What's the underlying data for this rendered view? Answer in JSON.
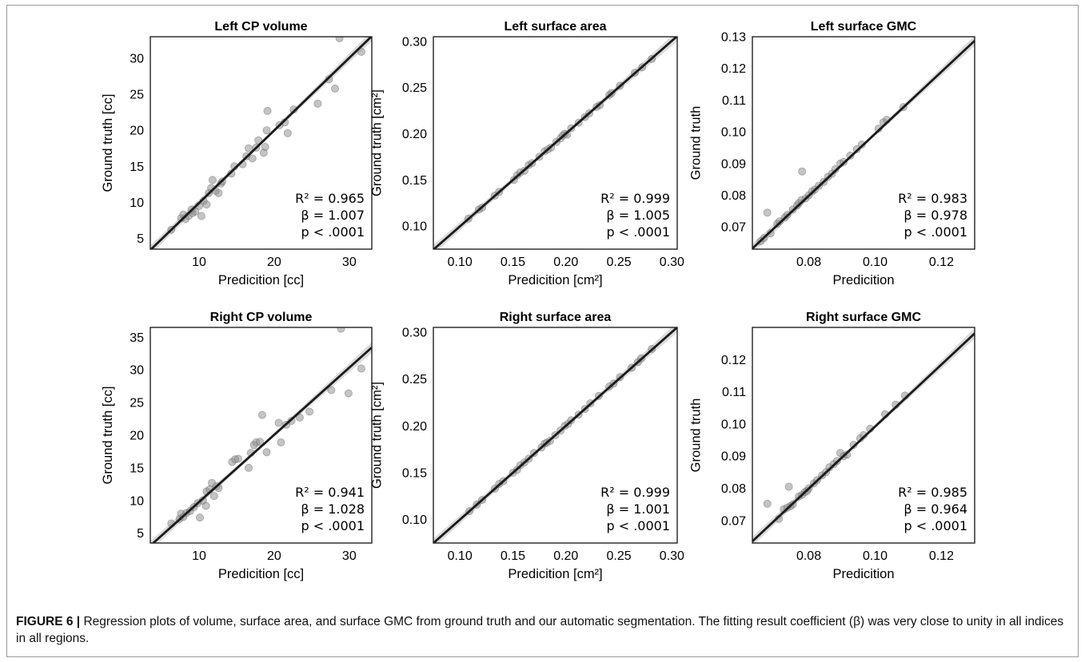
{
  "caption": {
    "label": "FIGURE 6 |",
    "text": " Regression plots of volume, surface area, and surface GMC from ground truth and our automatic segmentation. The fitting result coefficient (β) was very close to unity in all indices in all regions."
  },
  "colors": {
    "points": "#8a8a8a",
    "line": "#1a1a1a",
    "band": "#cfcfcf"
  },
  "chart_data": [
    {
      "type": "scatter",
      "title": "Left CP volume",
      "xlabel": "Predicition [cc]",
      "ylabel": "Ground truth [cc]",
      "xlim": [
        3.5,
        33
      ],
      "ylim": [
        3.5,
        33
      ],
      "xticks": [
        10,
        20,
        30
      ],
      "yticks": [
        5,
        10,
        15,
        20,
        25,
        30
      ],
      "stats": {
        "r2": "R² = 0.965",
        "beta": "β = 1.007",
        "p": "p < .0001"
      },
      "fit": {
        "slope": 1.007,
        "intercept": -0.15
      },
      "points": [
        [
          6.3,
          6.2
        ],
        [
          7.6,
          7.8
        ],
        [
          7.9,
          8.3
        ],
        [
          8.2,
          7.7
        ],
        [
          8.6,
          8.1
        ],
        [
          9.1,
          8.5
        ],
        [
          9.0,
          9.0
        ],
        [
          9.5,
          8.7
        ],
        [
          10.0,
          9.5
        ],
        [
          10.3,
          8.1
        ],
        [
          10.6,
          10.2
        ],
        [
          11.0,
          9.7
        ],
        [
          11.3,
          11.3
        ],
        [
          11.6,
          12.0
        ],
        [
          11.8,
          13.1
        ],
        [
          12.2,
          11.6
        ],
        [
          12.6,
          11.3
        ],
        [
          12.9,
          12.6
        ],
        [
          13.1,
          12.9
        ],
        [
          14.3,
          14.0
        ],
        [
          14.7,
          15.0
        ],
        [
          15.8,
          15.3
        ],
        [
          16.3,
          16.4
        ],
        [
          16.6,
          17.5
        ],
        [
          17.1,
          16.1
        ],
        [
          17.6,
          17.6
        ],
        [
          17.9,
          18.6
        ],
        [
          18.6,
          16.9
        ],
        [
          18.8,
          17.7
        ],
        [
          19.0,
          20.0
        ],
        [
          19.1,
          22.7
        ],
        [
          20.7,
          20.7
        ],
        [
          21.4,
          21.1
        ],
        [
          21.8,
          19.6
        ],
        [
          22.6,
          22.9
        ],
        [
          25.8,
          23.7
        ],
        [
          27.3,
          27.1
        ],
        [
          28.1,
          25.8
        ],
        [
          28.7,
          32.8
        ],
        [
          31.6,
          30.9
        ]
      ]
    },
    {
      "type": "scatter",
      "title": "Left surface area",
      "xlabel": "Predicition [cm²]",
      "ylabel": "Ground truth [cm²]",
      "xlim": [
        0.075,
        0.305
      ],
      "ylim": [
        0.075,
        0.305
      ],
      "xticks": [
        0.1,
        0.15,
        0.2,
        0.25,
        0.3
      ],
      "yticks": [
        0.1,
        0.15,
        0.2,
        0.25,
        0.3
      ],
      "stats": {
        "r2": "R² = 0.999",
        "beta": "β = 1.005",
        "p": "p < .0001"
      },
      "fit": {
        "slope": 1.005,
        "intercept": -0.0009
      },
      "points": [
        [
          0.108,
          0.108
        ],
        [
          0.118,
          0.118
        ],
        [
          0.121,
          0.12
        ],
        [
          0.133,
          0.133
        ],
        [
          0.137,
          0.137
        ],
        [
          0.151,
          0.15
        ],
        [
          0.154,
          0.155
        ],
        [
          0.157,
          0.158
        ],
        [
          0.161,
          0.16
        ],
        [
          0.165,
          0.166
        ],
        [
          0.168,
          0.168
        ],
        [
          0.175,
          0.175
        ],
        [
          0.18,
          0.181
        ],
        [
          0.183,
          0.183
        ],
        [
          0.186,
          0.185
        ],
        [
          0.191,
          0.191
        ],
        [
          0.195,
          0.195
        ],
        [
          0.197,
          0.198
        ],
        [
          0.199,
          0.2
        ],
        [
          0.201,
          0.199
        ],
        [
          0.205,
          0.206
        ],
        [
          0.212,
          0.212
        ],
        [
          0.218,
          0.218
        ],
        [
          0.222,
          0.222
        ],
        [
          0.229,
          0.229
        ],
        [
          0.232,
          0.231
        ],
        [
          0.241,
          0.242
        ],
        [
          0.243,
          0.244
        ],
        [
          0.251,
          0.252
        ],
        [
          0.265,
          0.266
        ],
        [
          0.272,
          0.272
        ],
        [
          0.281,
          0.281
        ]
      ]
    },
    {
      "type": "scatter",
      "title": "Left surface GMC",
      "xlabel": "Predicition",
      "ylabel": "Ground truth",
      "xlim": [
        0.063,
        0.13
      ],
      "ylim": [
        0.063,
        0.13
      ],
      "xticks": [
        0.08,
        0.1,
        0.12
      ],
      "yticks": [
        0.07,
        0.08,
        0.09,
        0.1,
        0.11,
        0.12,
        0.13
      ],
      "stats": {
        "r2": "R² = 0.983",
        "beta": "β = 0.978",
        "p": "p < .0001"
      },
      "fit": {
        "slope": 0.978,
        "intercept": 0.0016
      },
      "points": [
        [
          0.0655,
          0.0655
        ],
        [
          0.0665,
          0.0665
        ],
        [
          0.0675,
          0.0745
        ],
        [
          0.0685,
          0.068
        ],
        [
          0.0705,
          0.071
        ],
        [
          0.0712,
          0.0718
        ],
        [
          0.0728,
          0.073
        ],
        [
          0.0735,
          0.0738
        ],
        [
          0.0752,
          0.0755
        ],
        [
          0.0765,
          0.0768
        ],
        [
          0.077,
          0.0775
        ],
        [
          0.0778,
          0.0785
        ],
        [
          0.078,
          0.0875
        ],
        [
          0.079,
          0.079
        ],
        [
          0.08,
          0.08
        ],
        [
          0.081,
          0.0812
        ],
        [
          0.0818,
          0.0818
        ],
        [
          0.083,
          0.083
        ],
        [
          0.0845,
          0.0842
        ],
        [
          0.0858,
          0.0858
        ],
        [
          0.087,
          0.0868
        ],
        [
          0.088,
          0.0882
        ],
        [
          0.0895,
          0.09
        ],
        [
          0.0905,
          0.0905
        ],
        [
          0.0925,
          0.0925
        ],
        [
          0.0945,
          0.0945
        ],
        [
          0.096,
          0.096
        ],
        [
          0.101,
          0.101
        ],
        [
          0.1025,
          0.103
        ],
        [
          0.1035,
          0.1038
        ],
        [
          0.1085,
          0.1078
        ]
      ]
    },
    {
      "type": "scatter",
      "title": "Right CP volume",
      "xlabel": "Predicition [cc]",
      "ylabel": "Ground truth [cc]",
      "xlim": [
        3.5,
        33
      ],
      "ylim": [
        3.5,
        36.5
      ],
      "xticks": [
        10,
        20,
        30
      ],
      "yticks": [
        5,
        10,
        15,
        20,
        25,
        30,
        35
      ],
      "stats": {
        "r2": "R² = 0.941",
        "beta": "β = 1.028",
        "p": "p < .0001"
      },
      "fit": {
        "slope": 1.028,
        "intercept": -0.5
      },
      "points": [
        [
          6.3,
          6.5
        ],
        [
          7.4,
          7.2
        ],
        [
          7.6,
          8.0
        ],
        [
          7.9,
          7.5
        ],
        [
          8.3,
          8.1
        ],
        [
          8.8,
          8.4
        ],
        [
          9.3,
          9.0
        ],
        [
          9.8,
          9.6
        ],
        [
          10.1,
          7.4
        ],
        [
          10.5,
          10.0
        ],
        [
          10.9,
          9.2
        ],
        [
          11.0,
          11.4
        ],
        [
          11.4,
          11.7
        ],
        [
          11.7,
          12.7
        ],
        [
          12.0,
          10.7
        ],
        [
          12.3,
          12.2
        ],
        [
          12.6,
          11.9
        ],
        [
          14.4,
          15.9
        ],
        [
          14.8,
          16.3
        ],
        [
          15.2,
          16.4
        ],
        [
          16.6,
          15.0
        ],
        [
          16.9,
          17.3
        ],
        [
          17.3,
          18.5
        ],
        [
          17.6,
          18.9
        ],
        [
          18.1,
          19.0
        ],
        [
          18.4,
          23.1
        ],
        [
          19.0,
          17.4
        ],
        [
          20.6,
          21.9
        ],
        [
          20.9,
          18.9
        ],
        [
          21.6,
          21.6
        ],
        [
          22.3,
          22.2
        ],
        [
          23.4,
          22.7
        ],
        [
          24.7,
          23.6
        ],
        [
          27.6,
          26.9
        ],
        [
          28.9,
          36.3
        ],
        [
          29.9,
          26.4
        ],
        [
          31.6,
          30.2
        ]
      ]
    },
    {
      "type": "scatter",
      "title": "Right surface area",
      "xlabel": "Predicition [cm²]",
      "ylabel": "Ground truth [cm²]",
      "xlim": [
        0.075,
        0.305
      ],
      "ylim": [
        0.075,
        0.305
      ],
      "xticks": [
        0.1,
        0.15,
        0.2,
        0.25,
        0.3
      ],
      "yticks": [
        0.1,
        0.15,
        0.2,
        0.25,
        0.3
      ],
      "stats": {
        "r2": "R² = 0.999",
        "beta": "β = 1.001",
        "p": "p < .0001"
      },
      "fit": {
        "slope": 1.001,
        "intercept": -0.0002
      },
      "points": [
        [
          0.109,
          0.109
        ],
        [
          0.116,
          0.116
        ],
        [
          0.121,
          0.121
        ],
        [
          0.133,
          0.133
        ],
        [
          0.137,
          0.138
        ],
        [
          0.141,
          0.141
        ],
        [
          0.15,
          0.15
        ],
        [
          0.154,
          0.153
        ],
        [
          0.157,
          0.158
        ],
        [
          0.161,
          0.161
        ],
        [
          0.165,
          0.165
        ],
        [
          0.17,
          0.171
        ],
        [
          0.177,
          0.177
        ],
        [
          0.18,
          0.181
        ],
        [
          0.182,
          0.182
        ],
        [
          0.185,
          0.184
        ],
        [
          0.19,
          0.19
        ],
        [
          0.195,
          0.195
        ],
        [
          0.199,
          0.2
        ],
        [
          0.202,
          0.202
        ],
        [
          0.205,
          0.206
        ],
        [
          0.212,
          0.212
        ],
        [
          0.218,
          0.218
        ],
        [
          0.223,
          0.224
        ],
        [
          0.231,
          0.232
        ],
        [
          0.241,
          0.242
        ],
        [
          0.245,
          0.245
        ],
        [
          0.251,
          0.252
        ],
        [
          0.262,
          0.262
        ],
        [
          0.268,
          0.268
        ],
        [
          0.271,
          0.272
        ],
        [
          0.281,
          0.282
        ]
      ]
    },
    {
      "type": "scatter",
      "title": "Right surface GMC",
      "xlabel": "Predicition",
      "ylabel": "Ground truth",
      "xlim": [
        0.063,
        0.13
      ],
      "ylim": [
        0.063,
        0.13
      ],
      "xticks": [
        0.08,
        0.1,
        0.12
      ],
      "yticks": [
        0.07,
        0.08,
        0.09,
        0.1,
        0.11,
        0.12
      ],
      "stats": {
        "r2": "R² = 0.985",
        "beta": "β = 0.964",
        "p": "p < .0001"
      },
      "fit": {
        "slope": 0.964,
        "intercept": 0.0028
      },
      "points": [
        [
          0.0675,
          0.0752
        ],
        [
          0.071,
          0.0705
        ],
        [
          0.0725,
          0.0735
        ],
        [
          0.0735,
          0.074
        ],
        [
          0.074,
          0.0805
        ],
        [
          0.0745,
          0.0745
        ],
        [
          0.0752,
          0.075
        ],
        [
          0.077,
          0.0775
        ],
        [
          0.078,
          0.078
        ],
        [
          0.0788,
          0.0788
        ],
        [
          0.0795,
          0.0792
        ],
        [
          0.08,
          0.08
        ],
        [
          0.0815,
          0.0815
        ],
        [
          0.0825,
          0.0825
        ],
        [
          0.084,
          0.084
        ],
        [
          0.0852,
          0.085
        ],
        [
          0.0862,
          0.0865
        ],
        [
          0.0875,
          0.0875
        ],
        [
          0.0885,
          0.0885
        ],
        [
          0.0895,
          0.091
        ],
        [
          0.0905,
          0.09
        ],
        [
          0.0915,
          0.0905
        ],
        [
          0.0935,
          0.0935
        ],
        [
          0.0955,
          0.0955
        ],
        [
          0.0965,
          0.0965
        ],
        [
          0.0985,
          0.0985
        ],
        [
          0.103,
          0.103
        ],
        [
          0.1062,
          0.106
        ],
        [
          0.109,
          0.1088
        ]
      ]
    }
  ]
}
